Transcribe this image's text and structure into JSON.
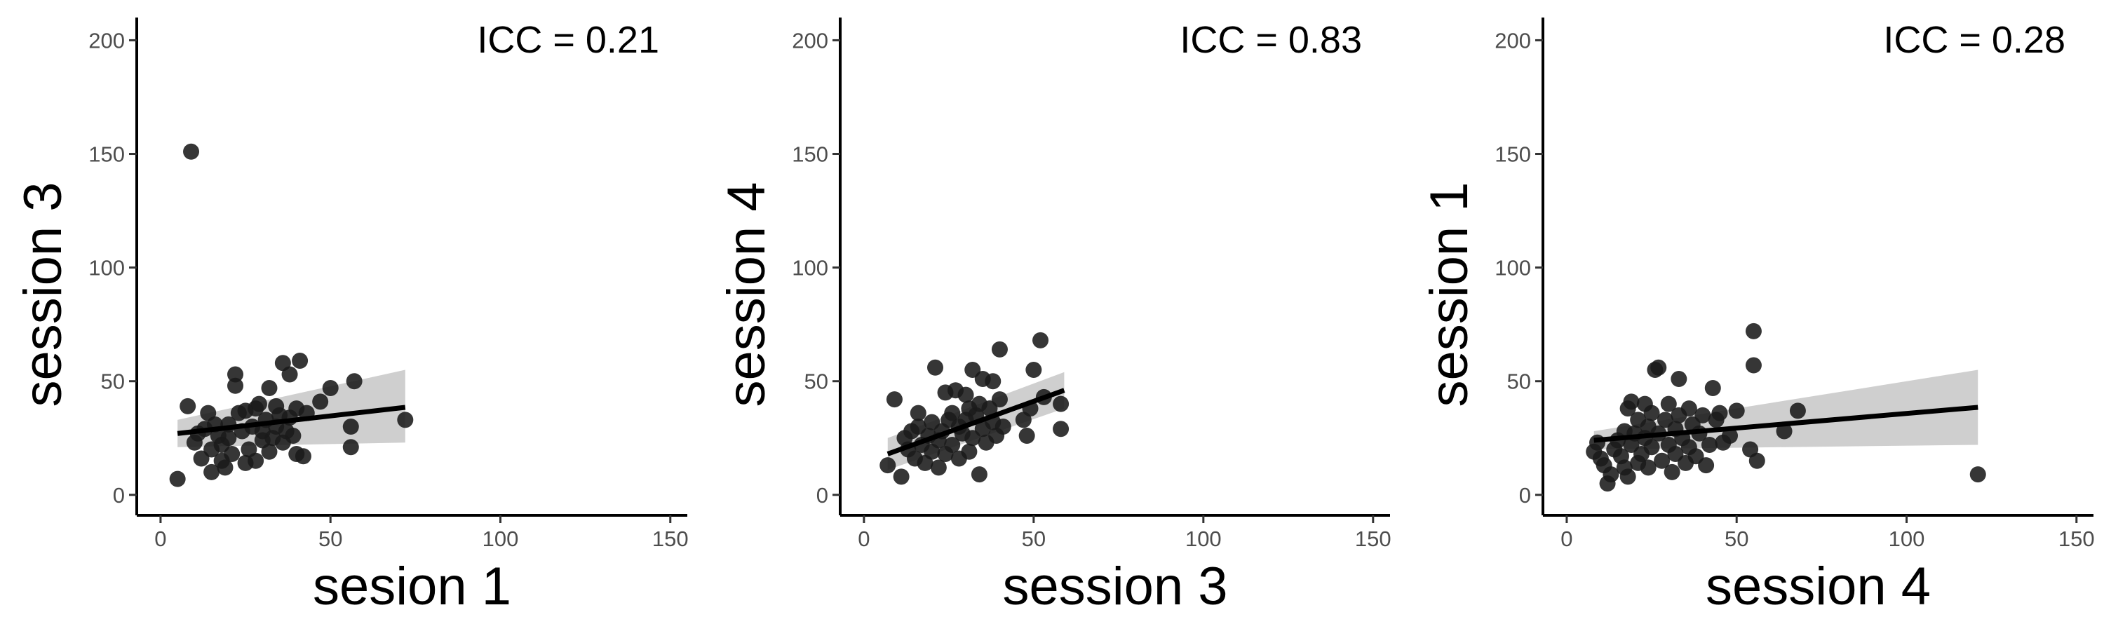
{
  "chart_data": [
    {
      "type": "scatter",
      "annotation": "ICC = 0.21",
      "xlabel": "sesion 1",
      "ylabel": "session 3",
      "xlim": [
        -7,
        155
      ],
      "ylim": [
        -9,
        210
      ],
      "xticks": [
        0,
        50,
        100,
        150
      ],
      "yticks": [
        0,
        50,
        100,
        150,
        200
      ],
      "grid": false,
      "fit": {
        "x": [
          5,
          72
        ],
        "y": [
          27,
          38.5
        ],
        "ci_lower": [
          21,
          23
        ],
        "ci_upper": [
          33,
          55
        ]
      },
      "points": [
        [
          5,
          7
        ],
        [
          8,
          39
        ],
        [
          9,
          151
        ],
        [
          10,
          23
        ],
        [
          11,
          27
        ],
        [
          12,
          16
        ],
        [
          13,
          29
        ],
        [
          14,
          36
        ],
        [
          15,
          10
        ],
        [
          15,
          20
        ],
        [
          16,
          31
        ],
        [
          17,
          26
        ],
        [
          18,
          22
        ],
        [
          18,
          15
        ],
        [
          19,
          12
        ],
        [
          20,
          25
        ],
        [
          20,
          31
        ],
        [
          21,
          18
        ],
        [
          22,
          48
        ],
        [
          22,
          53
        ],
        [
          23,
          36
        ],
        [
          24,
          28
        ],
        [
          25,
          14
        ],
        [
          25,
          37
        ],
        [
          26,
          20
        ],
        [
          27,
          30
        ],
        [
          28,
          15
        ],
        [
          28,
          38
        ],
        [
          29,
          40
        ],
        [
          30,
          24
        ],
        [
          30,
          28
        ],
        [
          31,
          33
        ],
        [
          32,
          19
        ],
        [
          32,
          47
        ],
        [
          33,
          25
        ],
        [
          34,
          39
        ],
        [
          34,
          30
        ],
        [
          35,
          35
        ],
        [
          36,
          23
        ],
        [
          36,
          58
        ],
        [
          37,
          28
        ],
        [
          38,
          34
        ],
        [
          38,
          53
        ],
        [
          39,
          26
        ],
        [
          40,
          38
        ],
        [
          40,
          18
        ],
        [
          41,
          59
        ],
        [
          42,
          17
        ],
        [
          43,
          36
        ],
        [
          47,
          41
        ],
        [
          50,
          47
        ],
        [
          56,
          30
        ],
        [
          56,
          21
        ],
        [
          57,
          50
        ],
        [
          72,
          33
        ]
      ]
    },
    {
      "type": "scatter",
      "annotation": "ICC = 0.83",
      "xlabel": "session 3",
      "ylabel": "session 4",
      "xlim": [
        -7,
        155
      ],
      "ylim": [
        -9,
        210
      ],
      "xticks": [
        0,
        50,
        100,
        150
      ],
      "yticks": [
        0,
        50,
        100,
        150,
        200
      ],
      "grid": false,
      "fit": {
        "x": [
          7,
          59
        ],
        "y": [
          18,
          46
        ],
        "ci_lower": [
          11,
          38
        ],
        "ci_upper": [
          25,
          54
        ]
      },
      "points": [
        [
          7,
          13
        ],
        [
          9,
          42
        ],
        [
          11,
          8
        ],
        [
          12,
          25
        ],
        [
          13,
          20
        ],
        [
          14,
          28
        ],
        [
          15,
          16
        ],
        [
          16,
          30
        ],
        [
          16,
          36
        ],
        [
          17,
          22
        ],
        [
          18,
          14
        ],
        [
          19,
          26
        ],
        [
          20,
          19
        ],
        [
          20,
          32
        ],
        [
          21,
          56
        ],
        [
          22,
          12
        ],
        [
          22,
          24
        ],
        [
          23,
          28
        ],
        [
          24,
          18
        ],
        [
          24,
          45
        ],
        [
          25,
          33
        ],
        [
          26,
          22
        ],
        [
          26,
          36
        ],
        [
          27,
          46
        ],
        [
          28,
          16
        ],
        [
          28,
          30
        ],
        [
          29,
          27
        ],
        [
          30,
          44
        ],
        [
          30,
          33
        ],
        [
          31,
          19
        ],
        [
          31,
          38
        ],
        [
          32,
          25
        ],
        [
          32,
          55
        ],
        [
          33,
          35
        ],
        [
          34,
          40
        ],
        [
          34,
          9
        ],
        [
          35,
          29
        ],
        [
          35,
          51
        ],
        [
          36,
          23
        ],
        [
          37,
          38
        ],
        [
          38,
          32
        ],
        [
          38,
          50
        ],
        [
          39,
          26
        ],
        [
          40,
          64
        ],
        [
          40,
          42
        ],
        [
          41,
          30
        ],
        [
          47,
          33
        ],
        [
          48,
          26
        ],
        [
          49,
          38
        ],
        [
          50,
          55
        ],
        [
          52,
          68
        ],
        [
          53,
          43
        ],
        [
          58,
          40
        ],
        [
          58,
          29
        ]
      ]
    },
    {
      "type": "scatter",
      "annotation": "ICC = 0.28",
      "xlabel": "session 4",
      "ylabel": "session 1",
      "xlim": [
        -7,
        155
      ],
      "ylim": [
        -9,
        210
      ],
      "xticks": [
        0,
        50,
        100,
        150
      ],
      "yticks": [
        0,
        50,
        100,
        150,
        200
      ],
      "grid": false,
      "fit": {
        "x": [
          8,
          121
        ],
        "y": [
          24,
          38.5
        ],
        "ci_lower": [
          20,
          22
        ],
        "ci_upper": [
          28,
          55
        ]
      },
      "points": [
        [
          8,
          19
        ],
        [
          9,
          23
        ],
        [
          10,
          16
        ],
        [
          11,
          13
        ],
        [
          12,
          5
        ],
        [
          13,
          9
        ],
        [
          14,
          20
        ],
        [
          15,
          24
        ],
        [
          16,
          17
        ],
        [
          17,
          12
        ],
        [
          17,
          28
        ],
        [
          18,
          8
        ],
        [
          18,
          38
        ],
        [
          19,
          22
        ],
        [
          19,
          41
        ],
        [
          20,
          27
        ],
        [
          21,
          14
        ],
        [
          21,
          33
        ],
        [
          22,
          18
        ],
        [
          23,
          25
        ],
        [
          23,
          40
        ],
        [
          24,
          12
        ],
        [
          24,
          30
        ],
        [
          25,
          21
        ],
        [
          25,
          36
        ],
        [
          26,
          55
        ],
        [
          27,
          27
        ],
        [
          27,
          56
        ],
        [
          28,
          15
        ],
        [
          29,
          33
        ],
        [
          30,
          40
        ],
        [
          30,
          22
        ],
        [
          31,
          10
        ],
        [
          32,
          29
        ],
        [
          32,
          18
        ],
        [
          33,
          35
        ],
        [
          33,
          51
        ],
        [
          34,
          25
        ],
        [
          35,
          14
        ],
        [
          36,
          38
        ],
        [
          36,
          21
        ],
        [
          37,
          31
        ],
        [
          38,
          17
        ],
        [
          39,
          27
        ],
        [
          40,
          35
        ],
        [
          41,
          13
        ],
        [
          42,
          22
        ],
        [
          43,
          47
        ],
        [
          44,
          33
        ],
        [
          45,
          36
        ],
        [
          46,
          23
        ],
        [
          48,
          26
        ],
        [
          50,
          37
        ],
        [
          54,
          20
        ],
        [
          55,
          72
        ],
        [
          55,
          57
        ],
        [
          56,
          15
        ],
        [
          64,
          28
        ],
        [
          68,
          37
        ],
        [
          121,
          9
        ]
      ]
    }
  ]
}
